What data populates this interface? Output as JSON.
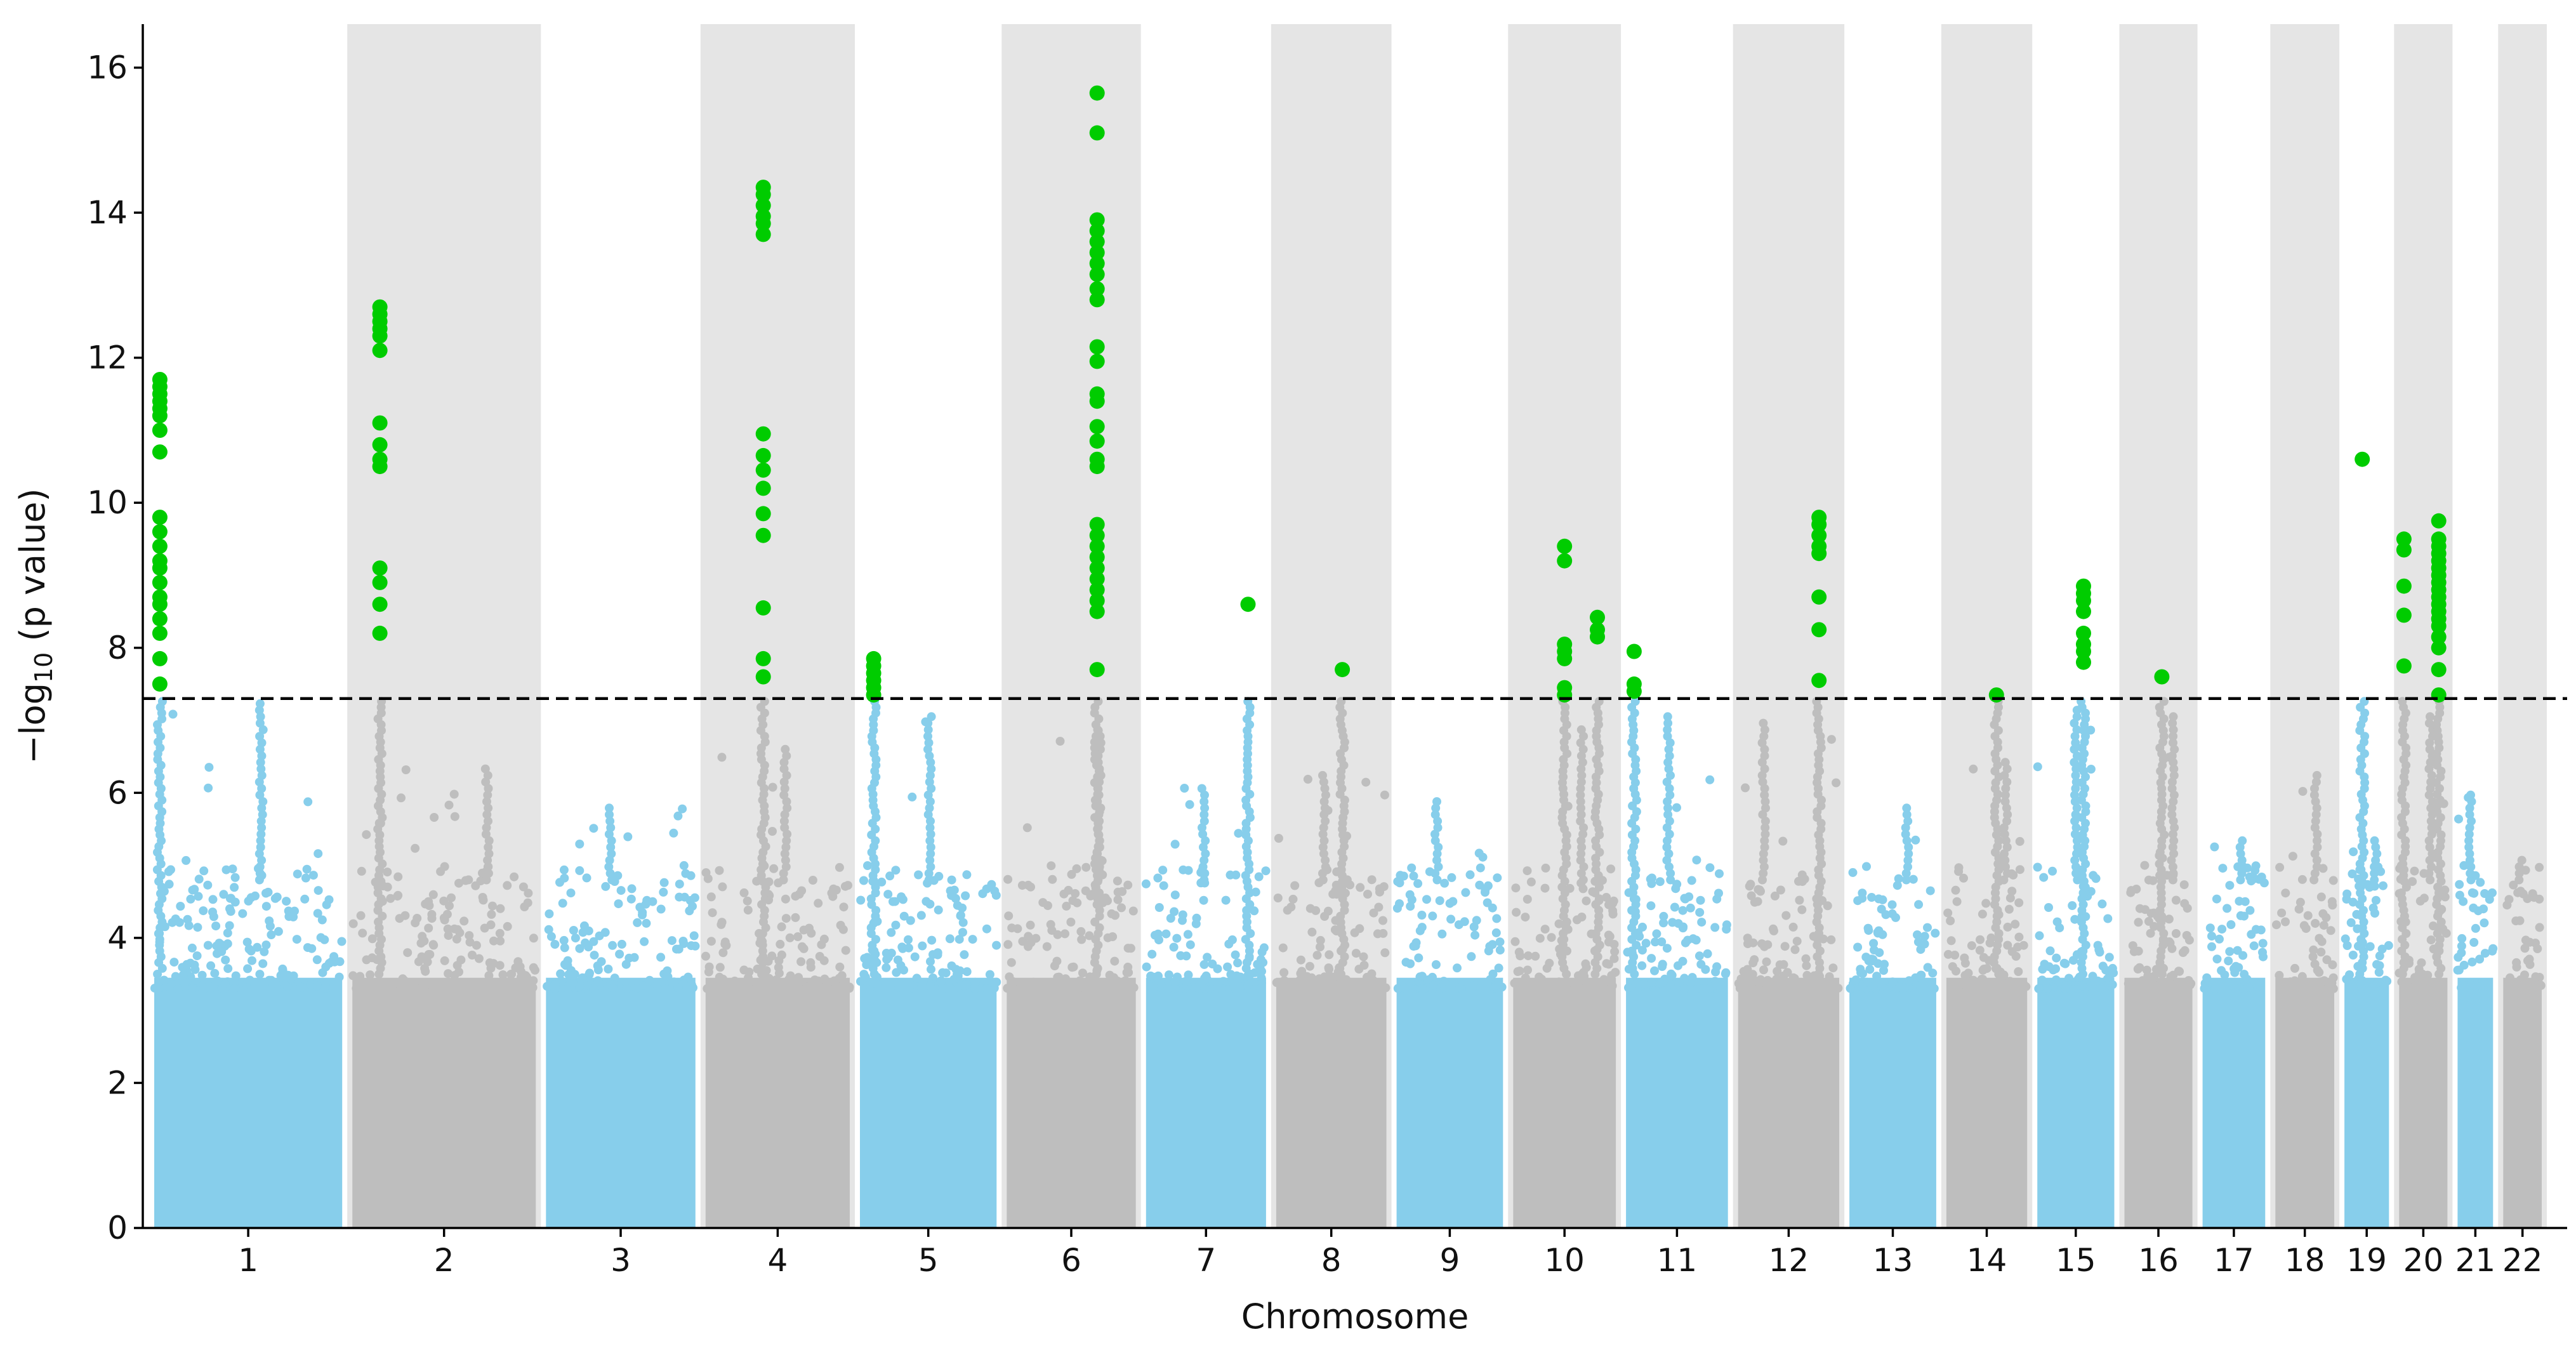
{
  "chart_data": {
    "type": "scatter",
    "subtype": "manhattan",
    "xlabel": "Chromosome",
    "ylabel": "−log10 (p value)",
    "ylim": [
      0,
      16.6
    ],
    "yticks": [
      0,
      2,
      4,
      6,
      8,
      10,
      12,
      14,
      16
    ],
    "threshold": 7.3,
    "colors": {
      "odd_chromosome": "#87ceeb",
      "even_chromosome": "#bebebe",
      "significant": "#00cc00",
      "shade_band": "#e5e5e5"
    },
    "chromosomes": [
      {
        "label": "1",
        "relative_length": 249,
        "shaded": false,
        "point_color": "#87ceeb",
        "peak_near_threshold": 7.25
      },
      {
        "label": "2",
        "relative_length": 243,
        "shaded": true,
        "point_color": "#bebebe",
        "peak_near_threshold": 6.4
      },
      {
        "label": "3",
        "relative_length": 198,
        "shaded": false,
        "point_color": "#87ceeb",
        "peak_near_threshold": 5.8
      },
      {
        "label": "4",
        "relative_length": 191,
        "shaded": true,
        "point_color": "#bebebe",
        "peak_near_threshold": 6.6
      },
      {
        "label": "5",
        "relative_length": 181,
        "shaded": false,
        "point_color": "#87ceeb",
        "peak_near_threshold": 7.05
      },
      {
        "label": "6",
        "relative_length": 171,
        "shaded": true,
        "point_color": "#bebebe",
        "peak_near_threshold": 6.9
      },
      {
        "label": "7",
        "relative_length": 159,
        "shaded": false,
        "point_color": "#87ceeb",
        "peak_near_threshold": 6.1
      },
      {
        "label": "8",
        "relative_length": 146,
        "shaded": true,
        "point_color": "#bebebe",
        "peak_near_threshold": 6.3
      },
      {
        "label": "9",
        "relative_length": 141,
        "shaded": false,
        "point_color": "#87ceeb",
        "peak_near_threshold": 5.9
      },
      {
        "label": "10",
        "relative_length": 136,
        "shaded": true,
        "point_color": "#bebebe",
        "peak_near_threshold": 6.9
      },
      {
        "label": "11",
        "relative_length": 135,
        "shaded": false,
        "point_color": "#87ceeb",
        "peak_near_threshold": 7.05
      },
      {
        "label": "12",
        "relative_length": 134,
        "shaded": true,
        "point_color": "#bebebe",
        "peak_near_threshold": 7.0
      },
      {
        "label": "13",
        "relative_length": 115,
        "shaded": false,
        "point_color": "#87ceeb",
        "peak_near_threshold": 5.8
      },
      {
        "label": "14",
        "relative_length": 107,
        "shaded": true,
        "point_color": "#bebebe",
        "peak_near_threshold": 6.5
      },
      {
        "label": "15",
        "relative_length": 102,
        "shaded": false,
        "point_color": "#87ceeb",
        "peak_near_threshold": 7.2
      },
      {
        "label": "16",
        "relative_length": 90,
        "shaded": true,
        "point_color": "#bebebe",
        "peak_near_threshold": 7.1
      },
      {
        "label": "17",
        "relative_length": 83,
        "shaded": false,
        "point_color": "#87ceeb",
        "peak_near_threshold": 5.4
      },
      {
        "label": "18",
        "relative_length": 78,
        "shaded": true,
        "point_color": "#bebebe",
        "peak_near_threshold": 6.25
      },
      {
        "label": "19",
        "relative_length": 59,
        "shaded": false,
        "point_color": "#87ceeb",
        "peak_near_threshold": 5.4
      },
      {
        "label": "20",
        "relative_length": 64,
        "shaded": true,
        "point_color": "#bebebe",
        "peak_near_threshold": 7.1
      },
      {
        "label": "21",
        "relative_length": 47,
        "shaded": false,
        "point_color": "#87ceeb",
        "peak_near_threshold": 6.0
      },
      {
        "label": "22",
        "relative_length": 51,
        "shaded": true,
        "point_color": "#bebebe",
        "peak_near_threshold": 5.1
      }
    ],
    "significant_hits": [
      {
        "chromosome": "1",
        "position_fraction": 0.03,
        "values": [
          11.7,
          11.6,
          11.5,
          11.4,
          11.3,
          11.2,
          11.0,
          10.7,
          9.8,
          9.6,
          9.4,
          9.2,
          9.1,
          8.9,
          8.7,
          8.6,
          8.4,
          8.2,
          7.85,
          7.5
        ]
      },
      {
        "chromosome": "2",
        "position_fraction": 0.15,
        "values": [
          12.7,
          12.6,
          12.5,
          12.4,
          12.3,
          12.1,
          11.1,
          10.8,
          10.6,
          10.5,
          9.1,
          8.9,
          8.6,
          8.2
        ]
      },
      {
        "chromosome": "4",
        "position_fraction": 0.4,
        "values": [
          14.35,
          14.25,
          14.1,
          13.95,
          13.85,
          13.7,
          10.95,
          10.65,
          10.45,
          10.2,
          9.85,
          9.55,
          8.55,
          7.85,
          7.6
        ]
      },
      {
        "chromosome": "5",
        "position_fraction": 0.1,
        "values": [
          7.85,
          7.75,
          7.65,
          7.55,
          7.45,
          7.35
        ]
      },
      {
        "chromosome": "6",
        "position_fraction": 0.7,
        "values": [
          15.65,
          15.1,
          13.9,
          13.75,
          13.6,
          13.45,
          13.3,
          13.15,
          12.95,
          12.8,
          12.15,
          11.95,
          11.5,
          11.4,
          11.05,
          10.85,
          10.6,
          10.5,
          9.7,
          9.55,
          9.4,
          9.25,
          9.1,
          8.95,
          8.8,
          8.65,
          8.5,
          7.7
        ]
      },
      {
        "chromosome": "7",
        "position_fraction": 0.85,
        "values": [
          8.6
        ]
      },
      {
        "chromosome": "8",
        "position_fraction": 0.6,
        "values": [
          7.7
        ]
      },
      {
        "chromosome": "10",
        "position_fraction": 0.5,
        "values": [
          9.4,
          9.2,
          8.05,
          7.95,
          7.85,
          7.45,
          7.35
        ]
      },
      {
        "chromosome": "10",
        "position_fraction": 0.82,
        "values": [
          8.42,
          8.25,
          8.15
        ]
      },
      {
        "chromosome": "11",
        "position_fraction": 0.08,
        "values": [
          7.95,
          7.5,
          7.4
        ]
      },
      {
        "chromosome": "12",
        "position_fraction": 0.8,
        "values": [
          9.8,
          9.7,
          9.55,
          9.4,
          9.3,
          8.7,
          8.25,
          7.55
        ]
      },
      {
        "chromosome": "14",
        "position_fraction": 0.62,
        "values": [
          7.35
        ]
      },
      {
        "chromosome": "15",
        "position_fraction": 0.6,
        "values": [
          8.85,
          8.75,
          8.65,
          8.5,
          8.2,
          8.05,
          7.95,
          7.8
        ]
      },
      {
        "chromosome": "16",
        "position_fraction": 0.55,
        "values": [
          7.6
        ]
      },
      {
        "chromosome": "19",
        "position_fraction": 0.4,
        "values": [
          10.6
        ]
      },
      {
        "chromosome": "20",
        "position_fraction": 0.1,
        "values": [
          9.5,
          9.35,
          8.85,
          8.45,
          7.75
        ]
      },
      {
        "chromosome": "20",
        "position_fraction": 0.82,
        "values": [
          9.75,
          9.5,
          9.4,
          9.3,
          9.2,
          9.1,
          9.0,
          8.9,
          8.8,
          8.7,
          8.6,
          8.5,
          8.4,
          8.3,
          8.15,
          8.0,
          7.7,
          7.35
        ]
      }
    ]
  }
}
